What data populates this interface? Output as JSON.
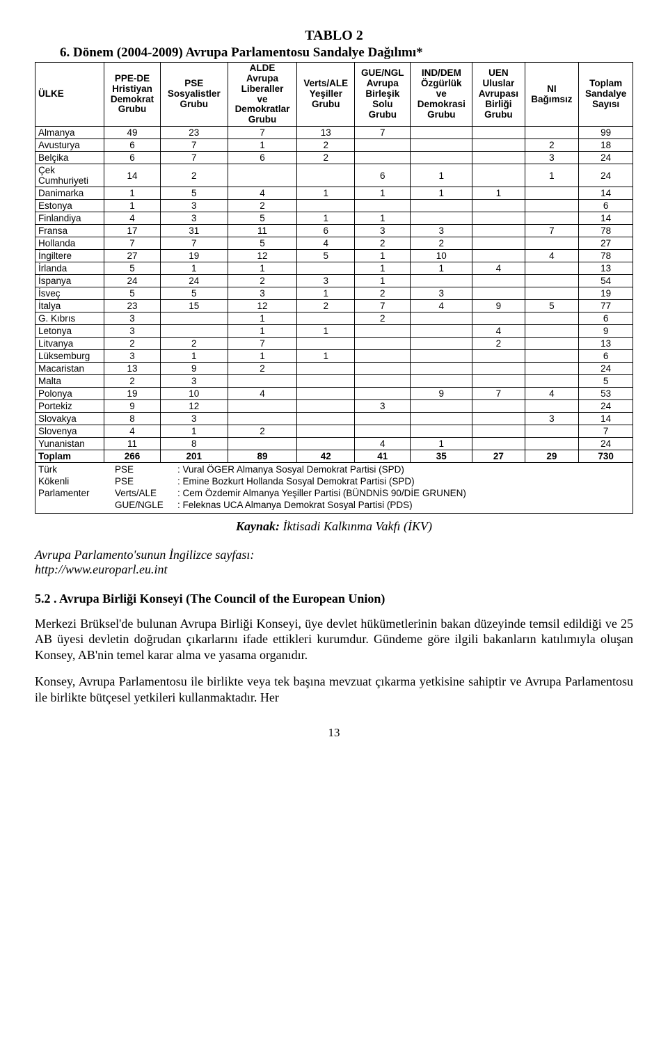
{
  "caption": "TABLO 2",
  "title": "6. Dönem (2004-2009) Avrupa Parlamentosu Sandalye Dağılımı*",
  "columns": [
    "ÜLKE",
    "PPE-DE Hristiyan Demokrat Grubu",
    "PSE Sosyalistler Grubu",
    "ALDE Avrupa Liberaller ve Demokratlar Grubu",
    "Verts/ALE Yeşiller Grubu",
    "GUE/NGL Avrupa Birleşik Solu Grubu",
    "IND/DEM Özgürlük ve Demokrasi Grubu",
    "UEN Uluslar Avrupası Birliği Grubu",
    "NI Bağımsız",
    "Toplam Sandalye Sayısı"
  ],
  "rows": [
    {
      "label": "Almanya",
      "cells": [
        "49",
        "23",
        "7",
        "13",
        "7",
        "",
        "",
        "",
        "99"
      ]
    },
    {
      "label": "Avusturya",
      "cells": [
        "6",
        "7",
        "1",
        "2",
        "",
        "",
        "",
        "2",
        "18"
      ]
    },
    {
      "label": "Belçika",
      "cells": [
        "6",
        "7",
        "6",
        "2",
        "",
        "",
        "",
        "3",
        "24"
      ]
    },
    {
      "label": "Çek Cumhuriyeti",
      "cells": [
        "14",
        "2",
        "",
        "",
        "6",
        "1",
        "",
        "1",
        "24"
      ]
    },
    {
      "label": "Danimarka",
      "cells": [
        "1",
        "5",
        "4",
        "1",
        "1",
        "1",
        "1",
        "",
        "14"
      ]
    },
    {
      "label": "Estonya",
      "cells": [
        "1",
        "3",
        "2",
        "",
        "",
        "",
        "",
        "",
        "6"
      ]
    },
    {
      "label": "Finlandiya",
      "cells": [
        "4",
        "3",
        "5",
        "1",
        "1",
        "",
        "",
        "",
        "14"
      ]
    },
    {
      "label": "Fransa",
      "cells": [
        "17",
        "31",
        "11",
        "6",
        "3",
        "3",
        "",
        "7",
        "78"
      ]
    },
    {
      "label": "Hollanda",
      "cells": [
        "7",
        "7",
        "5",
        "4",
        "2",
        "2",
        "",
        "",
        "27"
      ]
    },
    {
      "label": "İngiltere",
      "cells": [
        "27",
        "19",
        "12",
        "5",
        "1",
        "10",
        "",
        "4",
        "78"
      ]
    },
    {
      "label": "İrlanda",
      "cells": [
        "5",
        "1",
        "1",
        "",
        "1",
        "1",
        "4",
        "",
        "13"
      ]
    },
    {
      "label": "İspanya",
      "cells": [
        "24",
        "24",
        "2",
        "3",
        "1",
        "",
        "",
        "",
        "54"
      ]
    },
    {
      "label": "İsveç",
      "cells": [
        "5",
        "5",
        "3",
        "1",
        "2",
        "3",
        "",
        "",
        "19"
      ]
    },
    {
      "label": "İtalya",
      "cells": [
        "23",
        "15",
        "12",
        "2",
        "7",
        "4",
        "9",
        "5",
        "77"
      ]
    },
    {
      "label": "G. Kıbrıs",
      "cells": [
        "3",
        "",
        "1",
        "",
        "2",
        "",
        "",
        "",
        "6"
      ]
    },
    {
      "label": "Letonya",
      "cells": [
        "3",
        "",
        "1",
        "1",
        "",
        "",
        "4",
        "",
        "9"
      ]
    },
    {
      "label": "Litvanya",
      "cells": [
        "2",
        "2",
        "7",
        "",
        "",
        "",
        "2",
        "",
        "13"
      ]
    },
    {
      "label": "Lüksemburg",
      "cells": [
        "3",
        "1",
        "1",
        "1",
        "",
        "",
        "",
        "",
        "6"
      ]
    },
    {
      "label": "Macaristan",
      "cells": [
        "13",
        "9",
        "2",
        "",
        "",
        "",
        "",
        "",
        "24"
      ]
    },
    {
      "label": "Malta",
      "cells": [
        "2",
        "3",
        "",
        "",
        "",
        "",
        "",
        "",
        "5"
      ]
    },
    {
      "label": "Polonya",
      "cells": [
        "19",
        "10",
        "4",
        "",
        "",
        "9",
        "7",
        "4",
        "53"
      ]
    },
    {
      "label": "Portekiz",
      "cells": [
        "9",
        "12",
        "",
        "",
        "3",
        "",
        "",
        "",
        "24"
      ]
    },
    {
      "label": "Slovakya",
      "cells": [
        "8",
        "3",
        "",
        "",
        "",
        "",
        "",
        "3",
        "14"
      ]
    },
    {
      "label": "Slovenya",
      "cells": [
        "4",
        "1",
        "2",
        "",
        "",
        "",
        "",
        "",
        "7"
      ]
    },
    {
      "label": "Yunanistan",
      "cells": [
        "11",
        "8",
        "",
        "",
        "4",
        "1",
        "",
        "",
        "24"
      ]
    }
  ],
  "total": {
    "label": "Toplam",
    "cells": [
      "266",
      "201",
      "89",
      "42",
      "41",
      "35",
      "27",
      "29",
      "730"
    ]
  },
  "footnote": {
    "left_label": "Türk Kökenli Parlamenter",
    "parties": [
      "PSE",
      "PSE",
      "Verts/ALE",
      "GUE/NGLE"
    ],
    "lines": [
      ": Vural ÖGER Almanya Sosyal Demokrat Partisi (SPD)",
      ": Emine Bozkurt Hollanda Sosyal Demokrat Partisi (SPD)",
      ": Cem Özdemir Almanya Yeşiller Partisi (BÜNDNİS 90/DİE GRUNEN)",
      ": Feleknas  UCA Almanya Demokrat Sosyal Partisi (PDS)"
    ]
  },
  "source_label": "Kaynak:",
  "source_text": " İktisadi Kalkınma Vakfı (İKV)",
  "italic_block_line1": "Avrupa Parlamento'sunun İngilizce sayfası:",
  "italic_block_line2": "http://www.europarl.eu.int",
  "section_heading": "5.2 .  Avrupa Birliği Konseyi (The Council of the European Union)",
  "para1": "Merkezi Brüksel'de bulunan Avrupa Birliği Konseyi, üye devlet hükümetlerinin bakan düzeyinde temsil edildiği ve 25 AB üyesi devletin doğrudan çıkarlarını ifade ettikleri kurumdur. Gündeme göre ilgili bakanların katılımıyla oluşan Konsey, AB'nin temel karar alma ve yasama organıdır.",
  "para2": "Konsey, Avrupa Parlamentosu ile birlikte veya tek başına mevzuat çıkarma yetkisine sahiptir ve Avrupa Parlamentosu ile birlikte bütçesel yetkileri kullanmaktadır. Her",
  "page_number": "13"
}
